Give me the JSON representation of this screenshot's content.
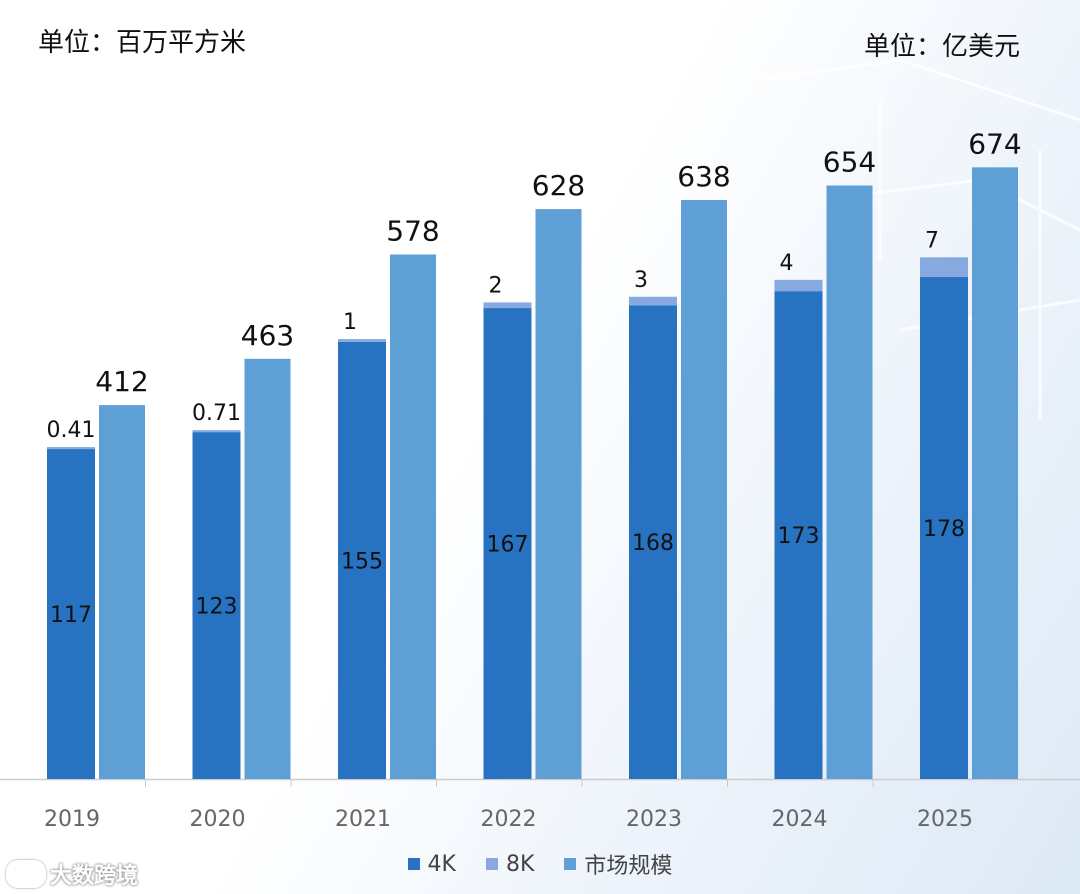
{
  "units": {
    "left": "单位：百万平方米",
    "right": "单位：亿美元"
  },
  "colors": {
    "c4k": "#2872c2",
    "c8k": "#86a9e0",
    "market": "#5e9fd6",
    "axis": "#cccccc",
    "tick": "#666666"
  },
  "legend": [
    {
      "label": "4K",
      "color": "#2872c2"
    },
    {
      "label": "8K",
      "color": "#86a9e0"
    },
    {
      "label": "市场规模",
      "color": "#5e9fd6"
    }
  ],
  "watermark": "大数跨境",
  "chart_data": {
    "type": "bar",
    "categories": [
      "2019",
      "2020",
      "2021",
      "2022",
      "2023",
      "2024",
      "2025"
    ],
    "series": [
      {
        "name": "4K",
        "values": [
          117,
          123,
          155,
          167,
          168,
          173,
          178
        ],
        "labels": [
          "117",
          "123",
          "155",
          "167",
          "168",
          "173",
          "178"
        ]
      },
      {
        "name": "8K",
        "values": [
          0.41,
          0.71,
          1,
          2,
          3,
          4,
          7
        ],
        "labels": [
          "0.41",
          "0.71",
          "1",
          "2",
          "3",
          "4",
          "7"
        ]
      },
      {
        "name": "市场规模",
        "values": [
          412,
          463,
          578,
          628,
          638,
          654,
          674
        ],
        "labels": [
          "412",
          "463",
          "578",
          "628",
          "638",
          "654",
          "674"
        ]
      }
    ],
    "stacked_series": [
      "4K",
      "8K"
    ],
    "y_left_unit": "单位：百万平方米",
    "y_right_unit": "单位：亿美元",
    "legend_position": "bottom"
  }
}
